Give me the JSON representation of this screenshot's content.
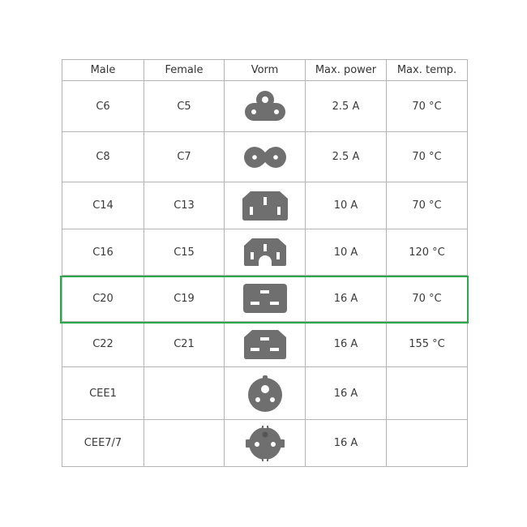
{
  "headers": [
    "Male",
    "Female",
    "Vorm",
    "Max. power",
    "Max. temp."
  ],
  "rows": [
    {
      "male": "C6",
      "female": "C5",
      "shape_icon": "c5-cloverleaf-icon",
      "power": "2.5 A",
      "temp": "70 °C"
    },
    {
      "male": "C8",
      "female": "C7",
      "shape_icon": "c7-figure-eight-icon",
      "power": "2.5 A",
      "temp": "70 °C"
    },
    {
      "male": "C14",
      "female": "C13",
      "shape_icon": "c13-connector-icon",
      "power": "10 A",
      "temp": "70 °C"
    },
    {
      "male": "C16",
      "female": "C15",
      "shape_icon": "c15-connector-icon",
      "power": "10 A",
      "temp": "120 °C"
    },
    {
      "male": "C20",
      "female": "C19",
      "shape_icon": "c19-connector-icon",
      "power": "16 A",
      "temp": "70 °C",
      "highlighted": true
    },
    {
      "male": "C22",
      "female": "C21",
      "shape_icon": "c21-connector-icon",
      "power": "16 A",
      "temp": "155 °C"
    },
    {
      "male": "CEE1",
      "female": "",
      "shape_icon": "cee1-socket-icon",
      "power": "16 A",
      "temp": ""
    },
    {
      "male": "CEE7/7",
      "female": "",
      "shape_icon": "cee7-schuko-icon",
      "power": "16 A",
      "temp": ""
    }
  ],
  "colors": {
    "icon": "#6f6f6f",
    "highlight": "#2aa84a",
    "grid": "#b4b4b4"
  }
}
